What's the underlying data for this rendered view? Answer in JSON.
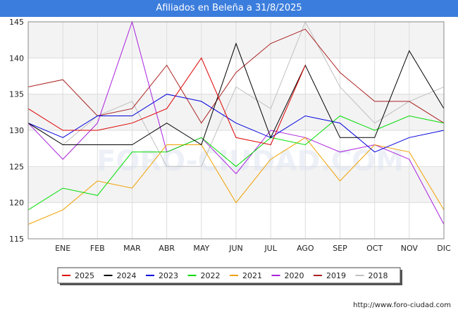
{
  "chart_data": {
    "type": "line",
    "title": "Afiliados en Beleña a 31/8/2025",
    "categories": [
      "",
      "ENE",
      "FEB",
      "MAR",
      "ABR",
      "MAY",
      "JUN",
      "JUL",
      "AGO",
      "SEP",
      "OCT",
      "NOV",
      "DIC"
    ],
    "ylim": [
      115,
      145
    ],
    "yticks": [
      115,
      120,
      125,
      130,
      135,
      140,
      145
    ],
    "grid": true,
    "legend_position": "bottom",
    "watermark": "FORO-CIUDAD.COM",
    "series": [
      {
        "name": "2025",
        "color": "#dd0000",
        "values": [
          133,
          130,
          130,
          131,
          133,
          140,
          129,
          128,
          139,
          null,
          null,
          null,
          null
        ]
      },
      {
        "name": "2024",
        "color": "#000000",
        "values": [
          131,
          128,
          128,
          128,
          131,
          128,
          142,
          129,
          139,
          129,
          129,
          141,
          133
        ]
      },
      {
        "name": "2023",
        "color": "#0000dd",
        "values": [
          131,
          129,
          132,
          132,
          135,
          134,
          131,
          129,
          132,
          131,
          127,
          129,
          130
        ]
      },
      {
        "name": "2022",
        "color": "#00dd00",
        "values": [
          119,
          122,
          121,
          127,
          127,
          129,
          125,
          129,
          128,
          132,
          130,
          132,
          131
        ]
      },
      {
        "name": "2021",
        "color": "#f0a000",
        "values": [
          117,
          119,
          123,
          122,
          128,
          128,
          120,
          126,
          129,
          123,
          128,
          127,
          119
        ]
      },
      {
        "name": "2020",
        "color": "#aa22dd",
        "values": [
          131,
          126,
          131,
          145,
          127,
          129,
          124,
          130,
          129,
          127,
          128,
          126,
          117
        ]
      },
      {
        "name": "2019",
        "color": "#aa2222",
        "values": [
          136,
          137,
          132,
          133,
          139,
          131,
          138,
          142,
          144,
          138,
          134,
          134,
          131
        ]
      },
      {
        "name": "2018",
        "color": "#c0c0c0",
        "values": [
          131,
          128,
          132,
          134,
          125,
          125,
          136,
          133,
          145,
          136,
          131,
          134,
          136
        ]
      }
    ]
  },
  "footer": {
    "url": "http://www.foro-ciudad.com"
  }
}
